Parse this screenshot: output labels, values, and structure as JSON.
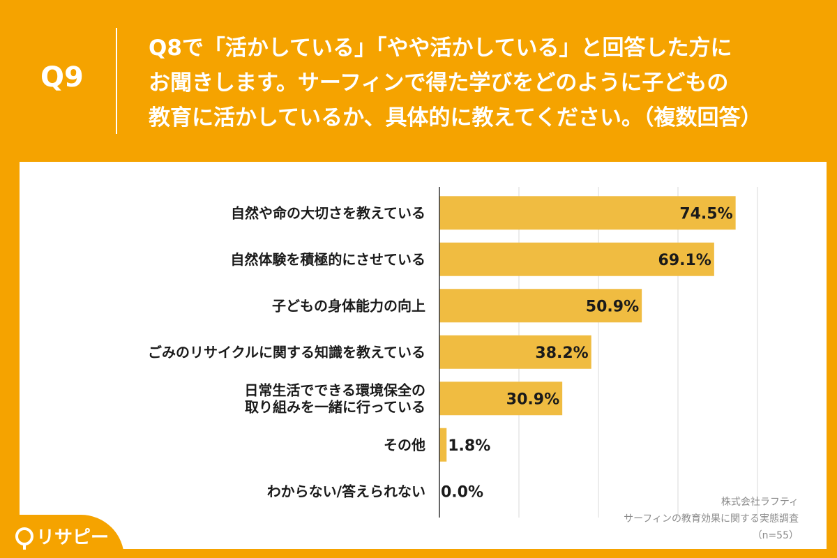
{
  "header": {
    "question_number": "Q9",
    "question_lines": [
      "Q8で「活かしている」「やや活かしている」と回答した方に",
      "お聞きします。サーフィンで得た学びをどのように子どもの",
      "教育に活かしているか、具体的に教えてください。（複数回答）"
    ]
  },
  "source": {
    "company": "株式会社ラフティ",
    "survey": "サーフィンの教育効果に関する実態調査",
    "sample": "（n=55）"
  },
  "logo": {
    "text": "リサピー"
  },
  "colors": {
    "background": "#F5A300",
    "bar": "#F0BC41",
    "grid": "#d9d9d9",
    "axis": "#333333"
  },
  "chart_data": {
    "type": "bar",
    "orientation": "horizontal",
    "categories": [
      [
        "自然や命の大切さを教えている"
      ],
      [
        "自然体験を積極的にさせている"
      ],
      [
        "子どもの身体能力の向上"
      ],
      [
        "ごみのリサイクルに関する知識を教えている"
      ],
      [
        "日常生活でできる環境保全の",
        "取り組みを一緒に行っている"
      ],
      [
        "その他"
      ],
      [
        "わからない/答えられない"
      ]
    ],
    "values": [
      74.5,
      69.1,
      50.9,
      38.2,
      30.9,
      1.8,
      0.0
    ],
    "value_labels": [
      "74.5%",
      "69.1%",
      "50.9%",
      "38.2%",
      "30.9%",
      "1.8%",
      "0.0%"
    ],
    "xlim": [
      0,
      100
    ],
    "gridlines": [
      0,
      20,
      40,
      60,
      80,
      100
    ],
    "grid": true,
    "legend": "none"
  }
}
